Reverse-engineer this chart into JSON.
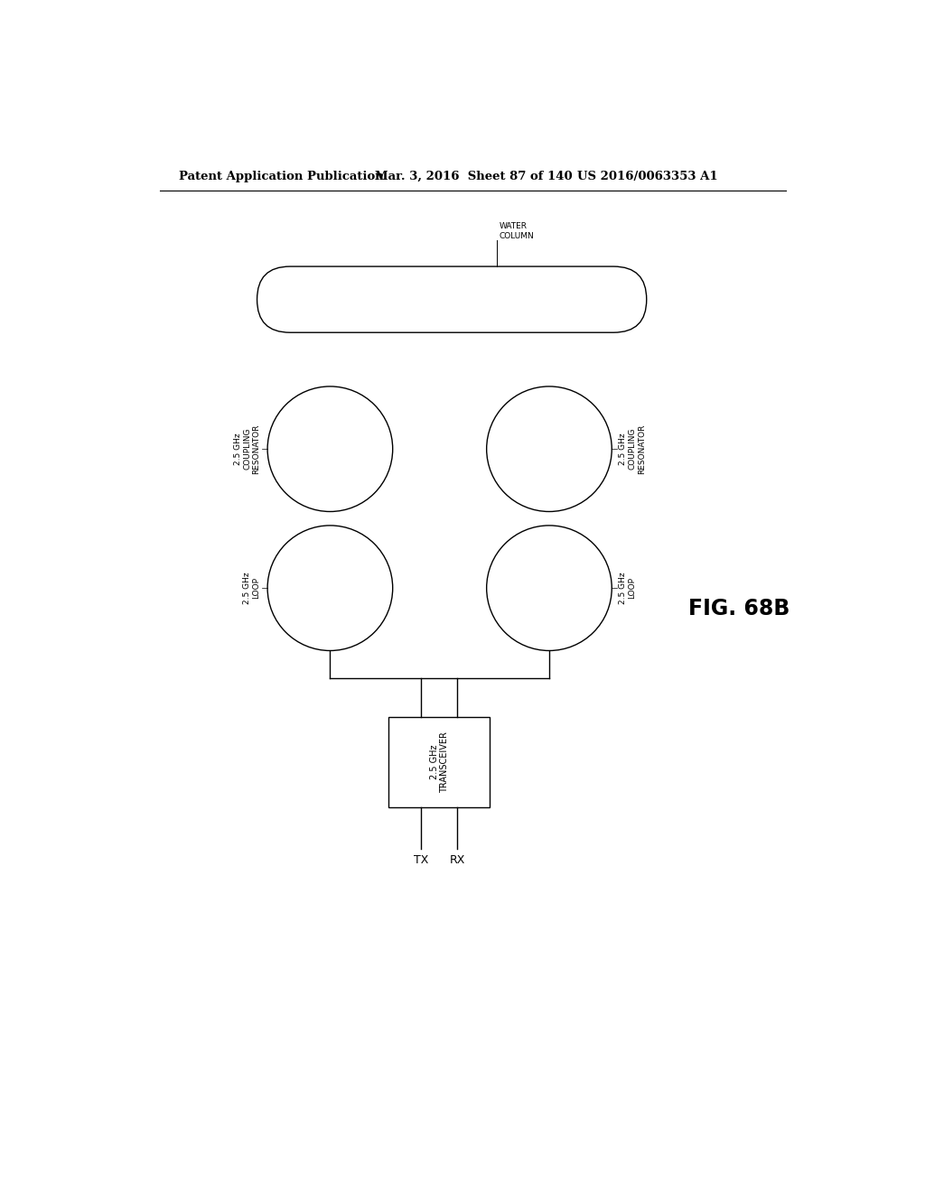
{
  "background_color": "#ffffff",
  "header_left": "Patent Application Publication",
  "header_mid": "Mar. 3, 2016  Sheet 87 of 140",
  "header_right": "US 2016/0063353 A1",
  "header_fontsize": 9.5,
  "fig_label": "FIG. 68B",
  "water_column_label": "WATER\nCOLUMN",
  "left_resonator_label": "2.5 GHz\nCOUPLING\nRESONATOR",
  "right_resonator_label": "2.5 GHz\nCOUPLING\nRESONATOR",
  "left_loop_label": "2.5 GHz\nLOOP",
  "right_loop_label": "2.5 GHz\nLOOP",
  "transceiver_label": "2.5 GHz\nTRANSCEIVER",
  "tx_label": "TX",
  "rx_label": "RX",
  "line_color": "#000000",
  "fill_color": "#ffffff",
  "line_width": 1.0
}
